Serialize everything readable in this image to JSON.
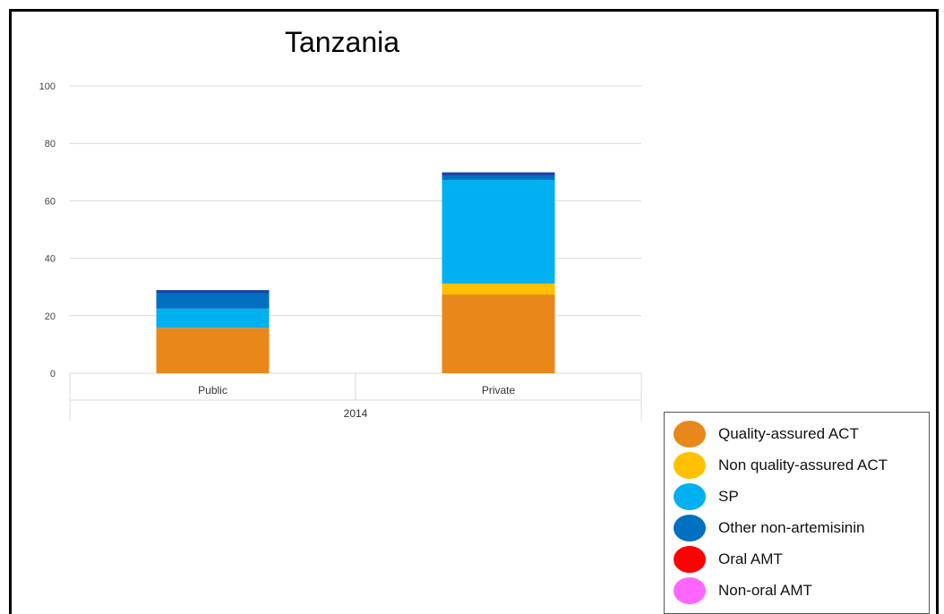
{
  "chart_data": {
    "type": "bar",
    "stacked": true,
    "title": "Tanzania",
    "categories": [
      "Public",
      "Private"
    ],
    "group_label": "2014",
    "ylim": [
      0,
      100
    ],
    "yticks": [
      "0",
      "20",
      "40",
      "60",
      "80",
      "100"
    ],
    "grid": true,
    "legend_position": "bottom-right",
    "series": [
      {
        "name": "Quality-assured ACT",
        "color": "#E9871A",
        "values": [
          15.8,
          27.4
        ]
      },
      {
        "name": "Non quality-assured ACT",
        "color": "#FFC000",
        "values": [
          0,
          3.8
        ]
      },
      {
        "name": "SP",
        "color": "#00B0F0",
        "values": [
          6.7,
          36.1
        ]
      },
      {
        "name": "Other non-artemisinin",
        "color": "#0070C0",
        "values": [
          6.4,
          2.6
        ]
      },
      {
        "name": "Oral AMT",
        "color": "#FF0000",
        "values": [
          0,
          0
        ]
      },
      {
        "name": "Non-oral AMT",
        "color": "#FF66FF",
        "values": [
          0,
          0
        ]
      }
    ],
    "top_cap_color": "#1F3FA8"
  }
}
